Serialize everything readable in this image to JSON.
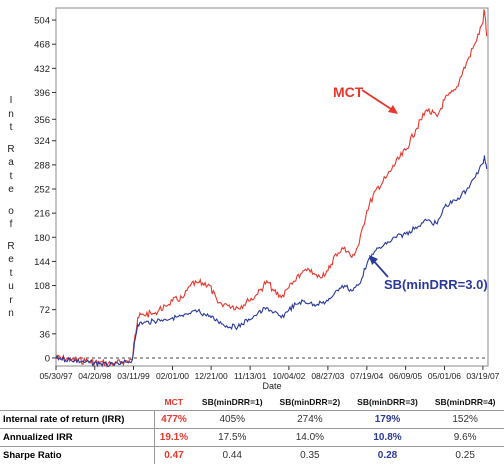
{
  "chart_data": {
    "type": "line",
    "xlabel": "Date",
    "ylabel": "Int Rate of Return",
    "x_ticks": [
      "05/30/97",
      "04/20/98",
      "03/11/99",
      "02/01/00",
      "12/21/00",
      "11/13/01",
      "10/04/02",
      "08/27/03",
      "07/19/04",
      "06/09/05",
      "05/01/06",
      "03/19/07"
    ],
    "y_ticks": [
      0,
      36,
      72,
      108,
      144,
      180,
      216,
      252,
      288,
      324,
      356,
      396,
      432,
      468,
      504
    ],
    "ylim": [
      -12,
      522
    ],
    "series": [
      {
        "name": "MCT",
        "color": "#e8372c",
        "points": [
          [
            "05/30/97",
            0
          ],
          [
            "10/01/97",
            -2
          ],
          [
            "02/01/98",
            -5
          ],
          [
            "06/01/98",
            -7
          ],
          [
            "10/01/98",
            -9
          ],
          [
            "01/15/99",
            -4
          ],
          [
            "03/01/99",
            -2
          ],
          [
            "03/25/99",
            35
          ],
          [
            "04/15/99",
            60
          ],
          [
            "06/01/99",
            65
          ],
          [
            "09/01/99",
            66
          ],
          [
            "12/01/99",
            78
          ],
          [
            "02/01/00",
            85
          ],
          [
            "05/01/00",
            90
          ],
          [
            "07/01/00",
            108
          ],
          [
            "09/01/00",
            112
          ],
          [
            "12/01/00",
            110
          ],
          [
            "02/15/01",
            82
          ],
          [
            "05/01/01",
            80
          ],
          [
            "08/01/01",
            75
          ],
          [
            "11/01/01",
            85
          ],
          [
            "01/15/02",
            95
          ],
          [
            "04/01/02",
            115
          ],
          [
            "06/01/02",
            100
          ],
          [
            "08/01/02",
            90
          ],
          [
            "10/04/02",
            105
          ],
          [
            "12/01/02",
            115
          ],
          [
            "02/01/03",
            130
          ],
          [
            "04/01/03",
            128
          ],
          [
            "06/01/03",
            120
          ],
          [
            "08/27/03",
            130
          ],
          [
            "11/01/03",
            155
          ],
          [
            "01/15/04",
            165
          ],
          [
            "03/15/04",
            150
          ],
          [
            "05/15/04",
            170
          ],
          [
            "07/19/04",
            220
          ],
          [
            "10/01/04",
            250
          ],
          [
            "01/01/05",
            270
          ],
          [
            "03/15/05",
            290
          ],
          [
            "06/09/05",
            310
          ],
          [
            "09/01/05",
            340
          ],
          [
            "12/01/05",
            370
          ],
          [
            "03/01/06",
            360
          ],
          [
            "05/01/06",
            385
          ],
          [
            "08/01/06",
            400
          ],
          [
            "11/01/06",
            440
          ],
          [
            "01/15/07",
            470
          ],
          [
            "03/19/07",
            500
          ],
          [
            "04/01/07",
            518
          ],
          [
            "04/20/07",
            480
          ]
        ]
      },
      {
        "name": "SB(minDRR=3.0)",
        "color": "#2a3a9a",
        "points": [
          [
            "05/30/97",
            0
          ],
          [
            "10/01/97",
            -3
          ],
          [
            "02/01/98",
            -6
          ],
          [
            "06/01/98",
            -9
          ],
          [
            "10/01/98",
            -11
          ],
          [
            "01/15/99",
            -6
          ],
          [
            "03/01/99",
            -3
          ],
          [
            "03/25/99",
            28
          ],
          [
            "04/15/99",
            50
          ],
          [
            "06/01/99",
            52
          ],
          [
            "09/01/99",
            55
          ],
          [
            "12/01/99",
            58
          ],
          [
            "02/01/00",
            60
          ],
          [
            "05/01/00",
            62
          ],
          [
            "07/01/00",
            66
          ],
          [
            "09/01/00",
            70
          ],
          [
            "12/01/00",
            62
          ],
          [
            "02/15/01",
            55
          ],
          [
            "05/01/01",
            48
          ],
          [
            "08/01/01",
            46
          ],
          [
            "11/01/01",
            58
          ],
          [
            "01/15/02",
            66
          ],
          [
            "04/01/02",
            75
          ],
          [
            "06/01/02",
            68
          ],
          [
            "08/01/02",
            60
          ],
          [
            "10/04/02",
            72
          ],
          [
            "12/01/02",
            80
          ],
          [
            "02/01/03",
            85
          ],
          [
            "04/01/03",
            82
          ],
          [
            "06/01/03",
            80
          ],
          [
            "08/27/03",
            85
          ],
          [
            "11/01/03",
            100
          ],
          [
            "01/15/04",
            108
          ],
          [
            "03/15/04",
            100
          ],
          [
            "05/15/04",
            110
          ],
          [
            "07/19/04",
            140
          ],
          [
            "10/01/04",
            160
          ],
          [
            "01/01/05",
            170
          ],
          [
            "03/15/05",
            180
          ],
          [
            "06/09/05",
            185
          ],
          [
            "09/01/05",
            195
          ],
          [
            "12/01/05",
            205
          ],
          [
            "03/01/06",
            200
          ],
          [
            "05/01/06",
            225
          ],
          [
            "08/01/06",
            235
          ],
          [
            "11/01/06",
            250
          ],
          [
            "01/15/07",
            270
          ],
          [
            "03/19/07",
            290
          ],
          [
            "04/01/07",
            302
          ],
          [
            "04/20/07",
            282
          ]
        ]
      }
    ],
    "annotations": [
      {
        "text": "MCT",
        "color": "#e8372c"
      },
      {
        "text": "SB(minDRR=3.0)",
        "color": "#2a3a9a"
      }
    ]
  },
  "stats_table": {
    "headers": [
      "MCT",
      "SB(minDRR=1)",
      "SB(minDRR=2)",
      "SB(minDRR=3)",
      "SB(minDRR=4)"
    ],
    "rows": [
      {
        "label": "Internal rate of return (IRR)",
        "values": [
          "477%",
          "405%",
          "274%",
          "179%",
          "152%"
        ]
      },
      {
        "label": "Annualized IRR",
        "values": [
          "19.1%",
          "17.5%",
          "14.0%",
          "10.8%",
          "9.6%"
        ]
      },
      {
        "label": "Sharpe Ratio",
        "values": [
          "0.47",
          "0.44",
          "0.35",
          "0.28",
          "0.25"
        ]
      }
    ]
  }
}
